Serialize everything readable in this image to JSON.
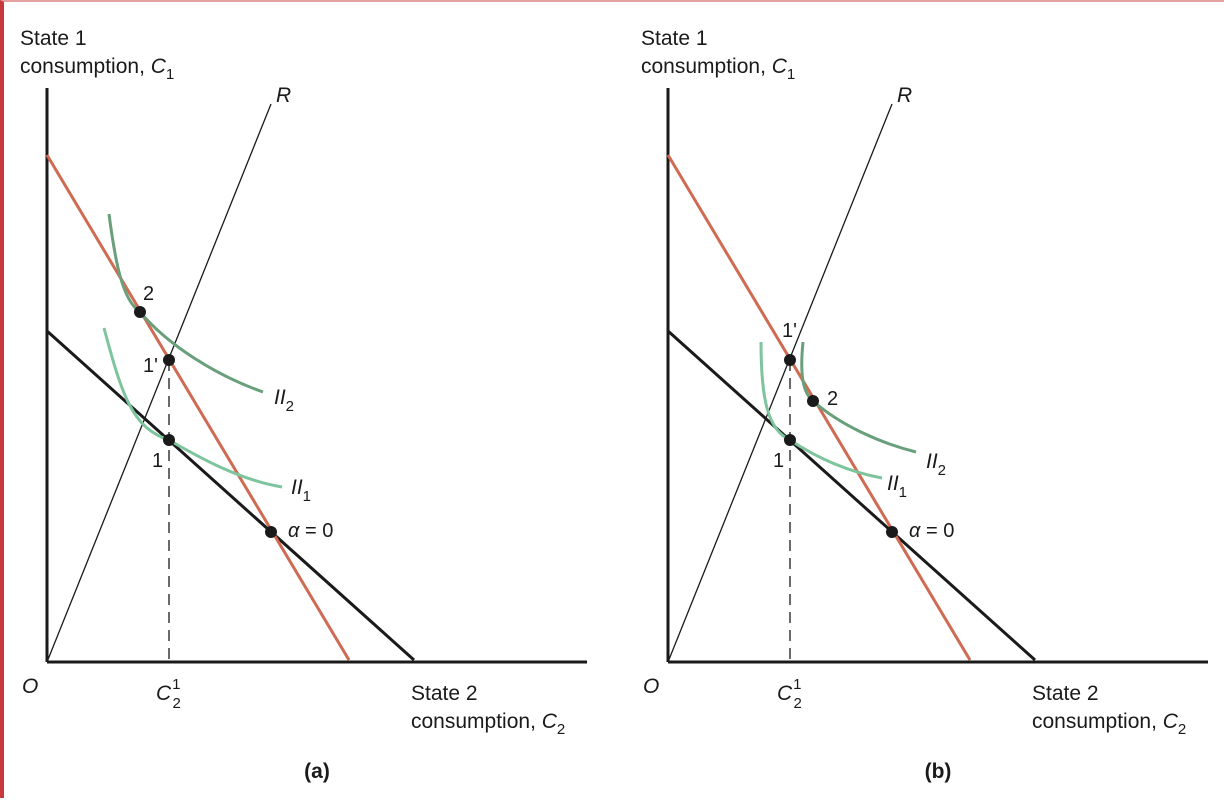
{
  "colors": {
    "axis": "#1a1a1a",
    "budget_line": "#1a1a1a",
    "price_line": "#cf6b52",
    "curve_ii1": "#7ec49c",
    "curve_ii2": "#6a9f7c",
    "border": "#c8383d"
  },
  "panels": [
    {
      "id": "a",
      "caption": "(a)",
      "y_label_line1": "State 1",
      "y_label_line2": "consumption, ",
      "y_label_var": "C",
      "y_label_sub": "1",
      "x_label_line1": "State 2",
      "x_label_line2": "consumption, ",
      "x_label_var": "C",
      "x_label_sub": "2",
      "origin_label": "O",
      "ray_label": "R",
      "tick_var": "C",
      "tick_sub": "2",
      "tick_sup": "1",
      "curve_ii1_label": "II",
      "curve_ii1_sub": "1",
      "curve_ii2_label": "II",
      "curve_ii2_sub": "2",
      "points": {
        "p1": "1",
        "p1prime": "1'",
        "p2": "2",
        "alpha_symbol": "α",
        "alpha_rest": " = 0"
      }
    },
    {
      "id": "b",
      "caption": "(b)",
      "y_label_line1": "State 1",
      "y_label_line2": "consumption, ",
      "y_label_var": "C",
      "y_label_sub": "1",
      "x_label_line1": "State 2",
      "x_label_line2": "consumption, ",
      "x_label_var": "C",
      "x_label_sub": "2",
      "origin_label": "O",
      "ray_label": "R",
      "tick_var": "C",
      "tick_sub": "2",
      "tick_sup": "1",
      "curve_ii1_label": "II",
      "curve_ii1_sub": "1",
      "curve_ii2_label": "II",
      "curve_ii2_sub": "2",
      "points": {
        "p1": "1",
        "p1prime": "1'",
        "p2": "2",
        "alpha_symbol": "α",
        "alpha_rest": " = 0"
      }
    }
  ]
}
